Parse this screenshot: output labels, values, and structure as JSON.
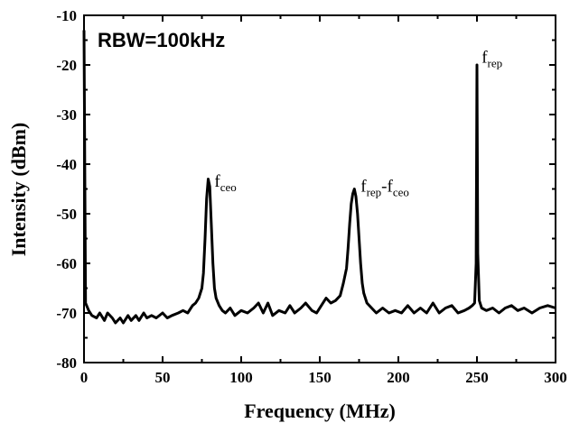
{
  "chart_data": {
    "type": "line",
    "xlabel": "Frequency (MHz)",
    "ylabel": "Intensity (dBm)",
    "xlim": [
      0,
      300
    ],
    "ylim": [
      -80,
      -10
    ],
    "x_ticks": [
      "0",
      "50",
      "100",
      "150",
      "200",
      "250",
      "300"
    ],
    "y_ticks": [
      "-10",
      "-20",
      "-30",
      "-40",
      "-50",
      "-60",
      "-70",
      "-80"
    ],
    "grid": false,
    "annotation_rbw": "RBW=100kHz",
    "peak_labels": [
      {
        "parts": [
          {
            "t": "f",
            "sub": false
          },
          {
            "t": "ceo",
            "sub": true
          }
        ],
        "x": 83,
        "y": -44.5
      },
      {
        "parts": [
          {
            "t": "f",
            "sub": false
          },
          {
            "t": "rep",
            "sub": true
          },
          {
            "t": "-f",
            "sub": false
          },
          {
            "t": "ceo",
            "sub": true
          }
        ],
        "x": 176,
        "y": -45.5
      },
      {
        "parts": [
          {
            "t": "f",
            "sub": false
          },
          {
            "t": "rep",
            "sub": true
          }
        ],
        "x": 253,
        "y": -19.5
      }
    ],
    "series": [
      {
        "values": [
          [
            0,
            -13
          ],
          [
            1,
            -68
          ],
          [
            3,
            -69.5
          ],
          [
            5,
            -70.5
          ],
          [
            8,
            -71
          ],
          [
            10,
            -70
          ],
          [
            13,
            -71.5
          ],
          [
            15,
            -70
          ],
          [
            18,
            -71
          ],
          [
            20,
            -72
          ],
          [
            23,
            -71
          ],
          [
            25,
            -72
          ],
          [
            28,
            -70.5
          ],
          [
            30,
            -71.5
          ],
          [
            33,
            -70.5
          ],
          [
            35,
            -71.5
          ],
          [
            38,
            -70
          ],
          [
            40,
            -71
          ],
          [
            43,
            -70.5
          ],
          [
            46,
            -71
          ],
          [
            50,
            -70
          ],
          [
            53,
            -71
          ],
          [
            56,
            -70.5
          ],
          [
            60,
            -70
          ],
          [
            63,
            -69.5
          ],
          [
            66,
            -70
          ],
          [
            69,
            -68.5
          ],
          [
            71,
            -68
          ],
          [
            73,
            -67
          ],
          [
            75,
            -65
          ],
          [
            76,
            -62
          ],
          [
            77,
            -55
          ],
          [
            78,
            -47
          ],
          [
            79,
            -43
          ],
          [
            80,
            -44.5
          ],
          [
            81,
            -52
          ],
          [
            82,
            -60
          ],
          [
            83,
            -65
          ],
          [
            84,
            -67
          ],
          [
            86,
            -68.5
          ],
          [
            88,
            -69.5
          ],
          [
            90,
            -70
          ],
          [
            93,
            -69
          ],
          [
            96,
            -70.5
          ],
          [
            100,
            -69.5
          ],
          [
            104,
            -70
          ],
          [
            108,
            -69
          ],
          [
            111,
            -68
          ],
          [
            114,
            -70
          ],
          [
            117,
            -68
          ],
          [
            120,
            -70.5
          ],
          [
            124,
            -69.5
          ],
          [
            128,
            -70
          ],
          [
            131,
            -68.5
          ],
          [
            134,
            -70
          ],
          [
            138,
            -69
          ],
          [
            141,
            -68
          ],
          [
            145,
            -69.5
          ],
          [
            148,
            -70
          ],
          [
            151,
            -68.5
          ],
          [
            154,
            -67
          ],
          [
            157,
            -68
          ],
          [
            160,
            -67.5
          ],
          [
            163,
            -66.5
          ],
          [
            165,
            -64
          ],
          [
            167,
            -61
          ],
          [
            168,
            -57
          ],
          [
            169,
            -52
          ],
          [
            170,
            -48
          ],
          [
            171,
            -46
          ],
          [
            172,
            -45
          ],
          [
            173,
            -46.5
          ],
          [
            174,
            -50
          ],
          [
            175,
            -55
          ],
          [
            176,
            -60
          ],
          [
            177,
            -64
          ],
          [
            178,
            -66
          ],
          [
            180,
            -68
          ],
          [
            183,
            -69
          ],
          [
            186,
            -70
          ],
          [
            190,
            -69
          ],
          [
            194,
            -70
          ],
          [
            198,
            -69.5
          ],
          [
            202,
            -70
          ],
          [
            206,
            -68.5
          ],
          [
            210,
            -70
          ],
          [
            214,
            -69
          ],
          [
            218,
            -70
          ],
          [
            222,
            -68
          ],
          [
            226,
            -70
          ],
          [
            230,
            -69
          ],
          [
            234,
            -68.5
          ],
          [
            238,
            -70
          ],
          [
            242,
            -69.5
          ],
          [
            245,
            -69
          ],
          [
            247,
            -68.5
          ],
          [
            248.5,
            -68
          ],
          [
            249.5,
            -60
          ],
          [
            250,
            -20
          ],
          [
            250.5,
            -58
          ],
          [
            251.5,
            -67.5
          ],
          [
            253,
            -69
          ],
          [
            256,
            -69.5
          ],
          [
            260,
            -69
          ],
          [
            264,
            -70
          ],
          [
            268,
            -69
          ],
          [
            272,
            -68.5
          ],
          [
            276,
            -69.5
          ],
          [
            280,
            -69
          ],
          [
            285,
            -70
          ],
          [
            290,
            -69
          ],
          [
            295,
            -68.5
          ],
          [
            300,
            -69
          ]
        ]
      }
    ]
  }
}
